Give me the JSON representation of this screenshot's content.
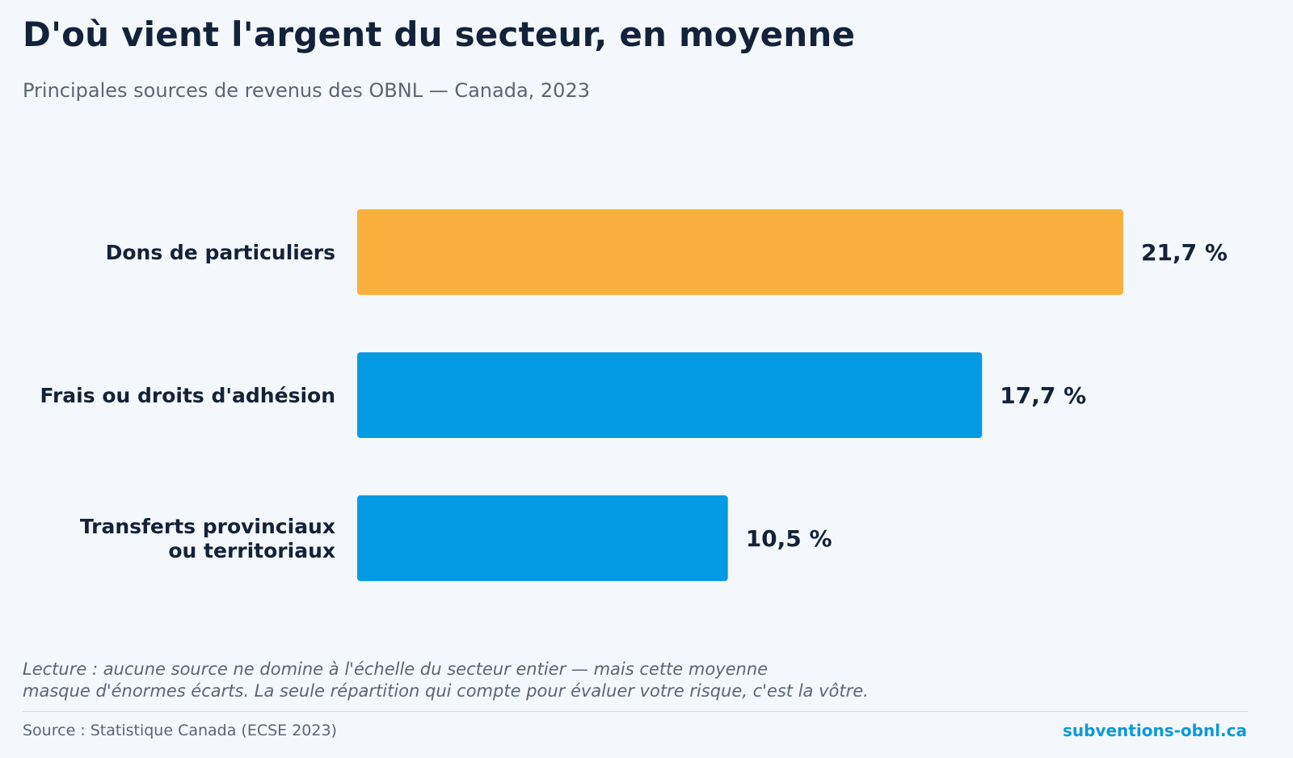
{
  "title": "D'où vient l'argent du secteur, en moyenne",
  "subtitle": "Principales sources de revenus des OBNL — Canada, 2023",
  "chart_data": {
    "type": "bar",
    "orientation": "horizontal",
    "categories": [
      [
        "Dons de particuliers"
      ],
      [
        "Frais ou droits d'adhésion"
      ],
      [
        "Transferts provinciaux",
        "ou territoriaux"
      ]
    ],
    "values": [
      21.7,
      17.7,
      10.5
    ],
    "value_labels": [
      "21,7 %",
      "17,7 %",
      "10,5 %"
    ],
    "bar_colors": [
      "#f9b03e",
      "#049be4",
      "#049be4"
    ],
    "unit": "%",
    "xlim": [
      0,
      21.7
    ],
    "grid": false,
    "legend": "none"
  },
  "note": {
    "lines": [
      "Lecture : aucune source ne domine à l'échelle du secteur entier — mais cette moyenne",
      "masque d'énormes écarts. La seule répartition qui compte pour évaluer votre risque, c'est la vôtre."
    ]
  },
  "footer": {
    "source": "Source : Statistique Canada (ECSE 2023)",
    "brand": "subventions-obnl.ca"
  },
  "colors": {
    "background": "#f4f7fb",
    "text": "#13223a",
    "muted": "#5b6672",
    "accent": "#049be4",
    "highlight": "#f9b03e"
  }
}
